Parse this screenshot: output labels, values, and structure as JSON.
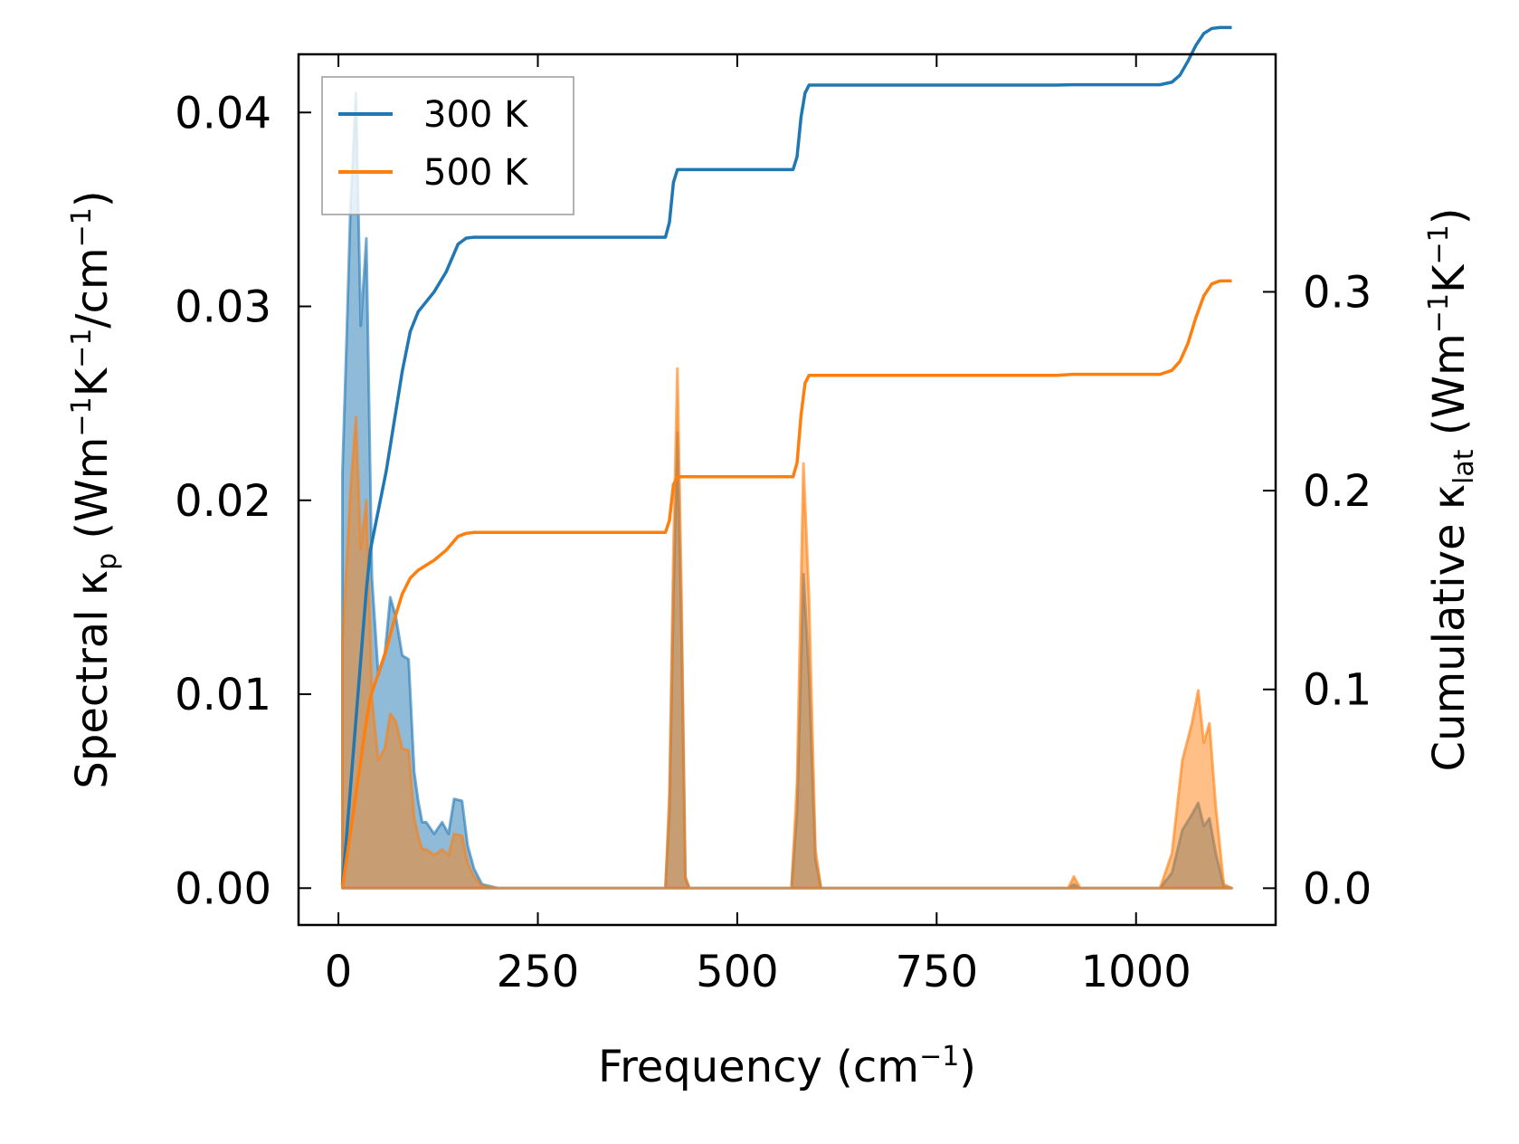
{
  "chart_data": {
    "type": "line",
    "xlabel": "Frequency (cm−1)",
    "xlabel_parts": {
      "pre": "Frequency (cm",
      "sup": "−1",
      "post": ")"
    },
    "ylabel_left": "Spectral κp (Wm−1K−1/cm−1)",
    "ylabel_left_parts": {
      "a": "Spectral κ",
      "sub": "p",
      "b": " (Wm",
      "sup1": "−1",
      "c": "K",
      "sup2": "−1",
      "d": "/cm",
      "sup3": "−1",
      "e": ")"
    },
    "ylabel_right": "Cumulative κlat (Wm−1K−1)",
    "ylabel_right_parts": {
      "a": "Cumulative κ",
      "sub": "lat",
      "b": " (Wm",
      "sup1": "−1",
      "c": "K",
      "sup2": "−1",
      "d": ")"
    },
    "xlim": [
      -50,
      1175
    ],
    "ylim_left": [
      -0.0019,
      0.043
    ],
    "ylim_right": [
      -0.0185,
      0.4195
    ],
    "xticks": [
      0,
      250,
      500,
      750,
      1000
    ],
    "xtick_labels": [
      "0",
      "250",
      "500",
      "750",
      "1000"
    ],
    "yticks_left": [
      0.0,
      0.01,
      0.02,
      0.03,
      0.04
    ],
    "ytick_labels_left": [
      "0.00",
      "0.01",
      "0.02",
      "0.03",
      "0.04"
    ],
    "yticks_right": [
      0.0,
      0.1,
      0.2,
      0.3
    ],
    "ytick_labels_right": [
      "0.0",
      "0.1",
      "0.2",
      "0.3"
    ],
    "legend_position": "top-left",
    "colors": {
      "300K": "#1f77b4",
      "500K": "#ff7f0e"
    },
    "spectral_series": [
      {
        "name": "300 K",
        "color": "#1f77b4",
        "x": [
          5,
          10,
          15,
          22,
          28,
          35,
          42,
          50,
          58,
          65,
          72,
          80,
          88,
          95,
          100,
          105,
          110,
          120,
          130,
          138,
          145,
          155,
          162,
          170,
          180,
          200,
          400,
          410,
          415,
          420,
          425,
          430,
          435,
          440,
          560,
          568,
          575,
          583,
          590,
          598,
          605,
          612,
          900,
          915,
          922,
          930,
          1020,
          1030,
          1045,
          1058,
          1070,
          1078,
          1085,
          1092,
          1100,
          1110,
          1120
        ],
        "y": [
          0.0214,
          0.028,
          0.035,
          0.041,
          0.029,
          0.0335,
          0.016,
          0.011,
          0.012,
          0.015,
          0.014,
          0.012,
          0.0118,
          0.006,
          0.0045,
          0.0034,
          0.0034,
          0.0028,
          0.0034,
          0.0028,
          0.0046,
          0.0045,
          0.0022,
          0.001,
          0.0002,
          0.0,
          0.0,
          0.0,
          0.004,
          0.015,
          0.0235,
          0.0135,
          0.0005,
          0.0,
          0.0,
          0.0,
          0.004,
          0.0162,
          0.011,
          0.0015,
          0.0,
          0.0,
          0.0,
          0.0,
          0.0002,
          0.0,
          0.0,
          0.0,
          0.0008,
          0.003,
          0.0038,
          0.0044,
          0.0032,
          0.0036,
          0.0018,
          0.0001,
          0.0
        ]
      },
      {
        "name": "500 K",
        "color": "#ff7f0e",
        "x": [
          5,
          10,
          15,
          22,
          28,
          35,
          42,
          50,
          58,
          65,
          72,
          80,
          88,
          95,
          100,
          105,
          110,
          120,
          130,
          138,
          145,
          155,
          162,
          170,
          180,
          200,
          400,
          410,
          415,
          420,
          425,
          430,
          435,
          440,
          560,
          568,
          575,
          583,
          590,
          598,
          605,
          612,
          900,
          915,
          922,
          930,
          1020,
          1030,
          1045,
          1058,
          1070,
          1078,
          1085,
          1092,
          1100,
          1110,
          1120
        ],
        "y": [
          0.0128,
          0.0165,
          0.0205,
          0.0243,
          0.0175,
          0.02,
          0.0098,
          0.0066,
          0.0072,
          0.009,
          0.0086,
          0.0072,
          0.0071,
          0.0036,
          0.0027,
          0.002,
          0.002,
          0.0017,
          0.002,
          0.0017,
          0.0028,
          0.0027,
          0.0013,
          0.0006,
          0.0001,
          0.0,
          0.0,
          0.0,
          0.005,
          0.0175,
          0.0268,
          0.0155,
          0.0006,
          0.0,
          0.0,
          0.0,
          0.0055,
          0.0219,
          0.015,
          0.002,
          0.0,
          0.0,
          0.0,
          0.0,
          0.0006,
          0.0,
          0.0,
          0.0,
          0.0018,
          0.0066,
          0.0085,
          0.0102,
          0.0075,
          0.0085,
          0.0042,
          0.0002,
          0.0
        ]
      }
    ],
    "cumulative_series": [
      {
        "name": "300 K",
        "color": "#1f77b4",
        "x": [
          5,
          10,
          15,
          20,
          25,
          30,
          35,
          40,
          50,
          60,
          70,
          80,
          90,
          100,
          120,
          135,
          150,
          160,
          170,
          180,
          200,
          300,
          400,
          410,
          415,
          420,
          425,
          430,
          440,
          560,
          570,
          575,
          580,
          585,
          590,
          600,
          700,
          900,
          920,
          940,
          1000,
          1030,
          1045,
          1055,
          1065,
          1075,
          1085,
          1095,
          1105,
          1120
        ],
        "y": [
          0.002,
          0.025,
          0.05,
          0.075,
          0.1,
          0.125,
          0.15,
          0.17,
          0.19,
          0.21,
          0.235,
          0.26,
          0.28,
          0.29,
          0.3,
          0.31,
          0.324,
          0.327,
          0.3275,
          0.3275,
          0.3275,
          0.3275,
          0.3275,
          0.3275,
          0.335,
          0.355,
          0.3615,
          0.3615,
          0.3615,
          0.3615,
          0.3615,
          0.368,
          0.388,
          0.4,
          0.404,
          0.404,
          0.404,
          0.404,
          0.4042,
          0.4042,
          0.4042,
          0.4042,
          0.4055,
          0.409,
          0.416,
          0.424,
          0.43,
          0.4325,
          0.433,
          0.433
        ]
      },
      {
        "name": "500 K",
        "color": "#ff7f0e",
        "x": [
          5,
          10,
          15,
          20,
          25,
          30,
          35,
          40,
          50,
          60,
          70,
          80,
          90,
          100,
          120,
          135,
          150,
          160,
          170,
          180,
          200,
          300,
          400,
          410,
          415,
          420,
          425,
          430,
          440,
          560,
          570,
          575,
          580,
          585,
          590,
          600,
          700,
          900,
          920,
          940,
          1000,
          1030,
          1045,
          1055,
          1065,
          1075,
          1085,
          1095,
          1105,
          1120
        ],
        "y": [
          0.001,
          0.014,
          0.028,
          0.042,
          0.056,
          0.07,
          0.084,
          0.096,
          0.108,
          0.12,
          0.135,
          0.148,
          0.156,
          0.16,
          0.165,
          0.17,
          0.177,
          0.1785,
          0.179,
          0.179,
          0.179,
          0.179,
          0.179,
          0.179,
          0.185,
          0.203,
          0.207,
          0.207,
          0.207,
          0.207,
          0.207,
          0.214,
          0.238,
          0.254,
          0.258,
          0.258,
          0.258,
          0.258,
          0.2585,
          0.2585,
          0.2585,
          0.2585,
          0.2605,
          0.265,
          0.274,
          0.287,
          0.298,
          0.304,
          0.3055,
          0.3055
        ]
      }
    ],
    "legend": [
      {
        "label": "300 K",
        "color": "#1f77b4"
      },
      {
        "label": "500 K",
        "color": "#ff7f0e"
      }
    ]
  }
}
